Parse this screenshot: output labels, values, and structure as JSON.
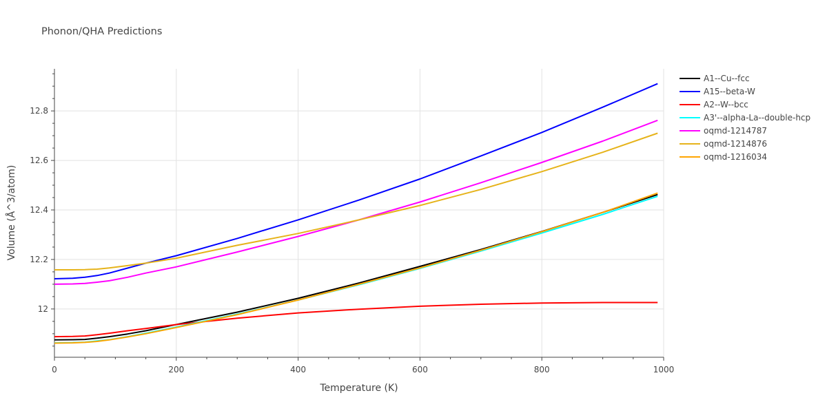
{
  "chart_data": {
    "type": "line",
    "title": "Phonon/QHA Predictions",
    "xlabel": "Temperature (K)",
    "ylabel": "Volume (Å^3/atom)",
    "xlim": [
      0,
      1000
    ],
    "ylim": [
      11.805,
      12.97
    ],
    "xticks": [
      0,
      200,
      400,
      600,
      800,
      1000
    ],
    "xtick_labels": [
      "0",
      "200",
      "400",
      "600",
      "800",
      "1000"
    ],
    "yticks": [
      12,
      12.2,
      12.4,
      12.6,
      12.8
    ],
    "ytick_labels": [
      "12",
      "12.2",
      "12.4",
      "12.6",
      "12.8"
    ],
    "grid": true,
    "legend_position": "right",
    "x": [
      0,
      30,
      50,
      70,
      90,
      120,
      150,
      200,
      300,
      400,
      500,
      600,
      700,
      800,
      900,
      990
    ],
    "series": [
      {
        "name": "A1--Cu--fcc",
        "color": "#000000",
        "values": [
          11.875,
          11.876,
          11.877,
          11.882,
          11.888,
          11.899,
          11.912,
          11.937,
          11.987,
          12.043,
          12.105,
          12.172,
          12.24,
          12.313,
          12.39,
          12.462
        ]
      },
      {
        "name": "A15--beta-W",
        "color": "#0000ff",
        "values": [
          12.122,
          12.124,
          12.128,
          12.135,
          12.145,
          12.165,
          12.185,
          12.215,
          12.285,
          12.36,
          12.44,
          12.525,
          12.618,
          12.713,
          12.815,
          12.91
        ]
      },
      {
        "name": "A2--W--bcc",
        "color": "#ff0000",
        "values": [
          11.888,
          11.889,
          11.891,
          11.896,
          11.902,
          11.912,
          11.921,
          11.937,
          11.963,
          11.984,
          11.999,
          12.011,
          12.019,
          12.024,
          12.026,
          12.026
        ]
      },
      {
        "name": "A3'--alpha-La--double-hcp",
        "color": "#00ffff",
        "values": [
          11.863,
          11.864,
          11.866,
          11.871,
          11.876,
          11.888,
          11.902,
          11.927,
          11.979,
          12.036,
          12.098,
          12.164,
          12.234,
          12.307,
          12.382,
          12.455
        ]
      },
      {
        "name": "oqmd-1214787",
        "color": "#ff00ff",
        "values": [
          12.1,
          12.101,
          12.103,
          12.108,
          12.114,
          12.128,
          12.145,
          12.17,
          12.23,
          12.293,
          12.36,
          12.432,
          12.51,
          12.592,
          12.678,
          12.762
        ]
      },
      {
        "name": "oqmd-1214876",
        "color": "#e6b31a",
        "values": [
          12.158,
          12.158,
          12.159,
          12.161,
          12.166,
          12.175,
          12.185,
          12.205,
          12.257,
          12.305,
          12.36,
          12.418,
          12.483,
          12.555,
          12.633,
          12.71
        ]
      },
      {
        "name": "oqmd-1216034",
        "color": "#ffa500",
        "values": [
          11.862,
          11.863,
          11.865,
          11.869,
          11.875,
          11.887,
          11.9,
          11.925,
          11.977,
          12.036,
          12.1,
          12.166,
          12.237,
          12.312,
          12.39,
          12.468
        ]
      }
    ]
  }
}
